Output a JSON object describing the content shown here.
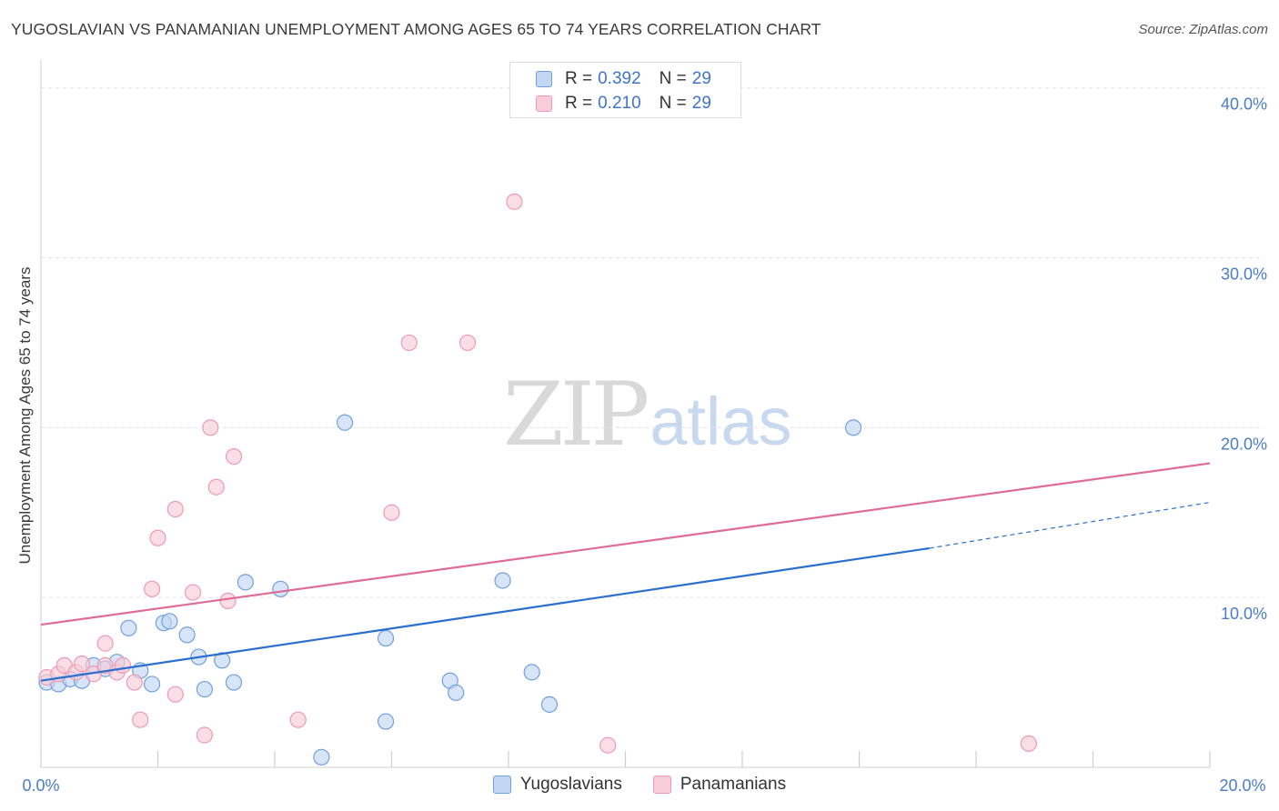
{
  "chart_data": {
    "type": "scatter",
    "title": "YUGOSLAVIAN VS PANAMANIAN UNEMPLOYMENT AMONG AGES 65 TO 74 YEARS CORRELATION CHART",
    "source": "Source: ZipAtlas.com",
    "xlabel": "",
    "ylabel": "Unemployment Among Ages 65 to 74 years",
    "xlim": [
      0,
      20
    ],
    "ylim": [
      0,
      40
    ],
    "x_tick_labels": [
      "0.0%",
      "20.0%"
    ],
    "y_ticks": [
      10,
      20,
      30,
      40
    ],
    "y_tick_labels": [
      "10.0%",
      "20.0%",
      "30.0%",
      "40.0%"
    ],
    "grid": true,
    "legend": {
      "placement": "top-center",
      "entries": [
        {
          "r_label": "R =",
          "r_value": "0.392",
          "n_label": "N =",
          "n_value": "29"
        },
        {
          "r_label": "R =",
          "r_value": "0.210",
          "n_label": "N =",
          "n_value": "29"
        }
      ]
    },
    "series": [
      {
        "name": "Yugoslavians",
        "color": "#6fa0e0",
        "fill": "#c3d6f2",
        "line_color": "#2a6fd0",
        "trend": {
          "x_start": 0,
          "y_start": 5.1,
          "x_solid_end": 15.2,
          "y_solid_end": 12.9,
          "x_end": 20,
          "y_end": 15.6
        },
        "points": [
          {
            "x": 0.1,
            "y": 5.0
          },
          {
            "x": 0.3,
            "y": 4.9
          },
          {
            "x": 0.5,
            "y": 5.2
          },
          {
            "x": 0.7,
            "y": 5.1
          },
          {
            "x": 0.9,
            "y": 6.0
          },
          {
            "x": 1.1,
            "y": 5.8
          },
          {
            "x": 1.3,
            "y": 6.2
          },
          {
            "x": 1.5,
            "y": 8.2
          },
          {
            "x": 1.7,
            "y": 5.7
          },
          {
            "x": 1.9,
            "y": 4.9
          },
          {
            "x": 2.1,
            "y": 8.5
          },
          {
            "x": 2.2,
            "y": 8.6
          },
          {
            "x": 2.5,
            "y": 7.8
          },
          {
            "x": 2.7,
            "y": 6.5
          },
          {
            "x": 2.8,
            "y": 4.6
          },
          {
            "x": 3.1,
            "y": 6.3
          },
          {
            "x": 3.3,
            "y": 5.0
          },
          {
            "x": 3.5,
            "y": 10.9
          },
          {
            "x": 4.1,
            "y": 10.5
          },
          {
            "x": 4.8,
            "y": 0.6
          },
          {
            "x": 5.2,
            "y": 20.3
          },
          {
            "x": 5.9,
            "y": 7.6
          },
          {
            "x": 5.9,
            "y": 2.7
          },
          {
            "x": 7.0,
            "y": 5.1
          },
          {
            "x": 7.1,
            "y": 4.4
          },
          {
            "x": 7.9,
            "y": 11.0
          },
          {
            "x": 8.4,
            "y": 5.6
          },
          {
            "x": 8.7,
            "y": 3.7
          },
          {
            "x": 13.9,
            "y": 20.0
          }
        ]
      },
      {
        "name": "Panamanians",
        "color": "#ef9ab5",
        "fill": "#f8cdd9",
        "line_color": "#e06b95",
        "trend": {
          "x_start": 0,
          "y_start": 8.4,
          "x_end": 20,
          "y_end": 17.9
        },
        "points": [
          {
            "x": 0.1,
            "y": 5.3
          },
          {
            "x": 0.3,
            "y": 5.5
          },
          {
            "x": 0.4,
            "y": 6.0
          },
          {
            "x": 0.6,
            "y": 5.6
          },
          {
            "x": 0.7,
            "y": 6.1
          },
          {
            "x": 0.9,
            "y": 5.5
          },
          {
            "x": 1.1,
            "y": 6.0
          },
          {
            "x": 1.1,
            "y": 7.3
          },
          {
            "x": 1.3,
            "y": 5.6
          },
          {
            "x": 1.4,
            "y": 6.0
          },
          {
            "x": 1.6,
            "y": 5.0
          },
          {
            "x": 1.7,
            "y": 2.8
          },
          {
            "x": 1.9,
            "y": 10.5
          },
          {
            "x": 2.0,
            "y": 13.5
          },
          {
            "x": 2.3,
            "y": 4.3
          },
          {
            "x": 2.3,
            "y": 15.2
          },
          {
            "x": 2.6,
            "y": 10.3
          },
          {
            "x": 2.8,
            "y": 1.9
          },
          {
            "x": 2.9,
            "y": 20.0
          },
          {
            "x": 3.0,
            "y": 16.5
          },
          {
            "x": 3.2,
            "y": 9.8
          },
          {
            "x": 3.3,
            "y": 18.3
          },
          {
            "x": 4.4,
            "y": 2.8
          },
          {
            "x": 6.0,
            "y": 15.0
          },
          {
            "x": 6.3,
            "y": 25.0
          },
          {
            "x": 7.3,
            "y": 25.0
          },
          {
            "x": 8.1,
            "y": 33.3
          },
          {
            "x": 9.7,
            "y": 1.3
          },
          {
            "x": 16.9,
            "y": 1.4
          }
        ]
      }
    ]
  },
  "watermark": {
    "zip": "ZIP",
    "atlas": "atlas"
  }
}
